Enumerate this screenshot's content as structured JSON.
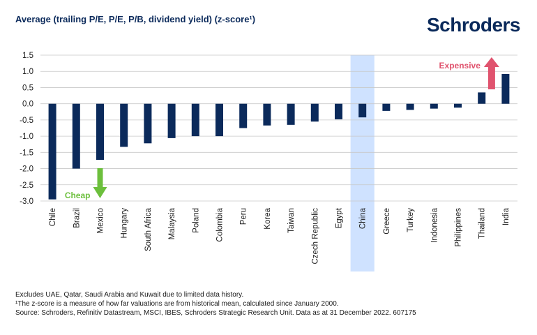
{
  "header": {
    "title": "Average (trailing P/E, P/E, P/B, dividend yield) (z-score¹)",
    "logo": "Schroders"
  },
  "chart_data": {
    "type": "bar",
    "categories": [
      "Chile",
      "Brazil",
      "Mexico",
      "Hungary",
      "South Africa",
      "Malaysia",
      "Poland",
      "Colombia",
      "Peru",
      "Korea",
      "Taiwan",
      "Czech Republic",
      "Egypt",
      "China",
      "Greece",
      "Turkey",
      "Indonesia",
      "Philippines",
      "Thailand",
      "India"
    ],
    "values": [
      -2.95,
      -2.0,
      -1.73,
      -1.33,
      -1.22,
      -1.06,
      -1.0,
      -1.0,
      -0.75,
      -0.67,
      -0.65,
      -0.55,
      -0.48,
      -0.42,
      -0.22,
      -0.19,
      -0.15,
      -0.12,
      0.35,
      0.92
    ],
    "title": "Average (trailing P/E, P/E, P/B, dividend yield) (z-score¹)",
    "ylim": [
      -3.0,
      1.5
    ],
    "yticks": [
      "1.5",
      "1.0",
      "0.5",
      "0.0",
      "-0.5",
      "-1.0",
      "-1.5",
      "-2.0",
      "-2.5",
      "-3.0"
    ],
    "grid": true,
    "highlight_category": "China",
    "annotations": [
      {
        "text": "Cheap",
        "color": "#6cbf3c",
        "direction": "down",
        "category": "Mexico"
      },
      {
        "text": "Expensive",
        "color": "#e0536e",
        "direction": "up",
        "category": "India"
      }
    ],
    "colors": {
      "bar": "#0b2a5b",
      "highlight": "#cfe2ff",
      "grid": "#c8c8c8"
    }
  },
  "notes": [
    "Excludes UAE, Qatar, Saudi Arabia and Kuwait due to limited data history.",
    "¹The z-score is a measure of how far valuations are from historical mean, calculated since January 2000.",
    "Source: Schroders, Refinitiv Datastream, MSCI, IBES, Schroders Strategic Research Unit. Data as at 31 December 2022. 607175"
  ]
}
